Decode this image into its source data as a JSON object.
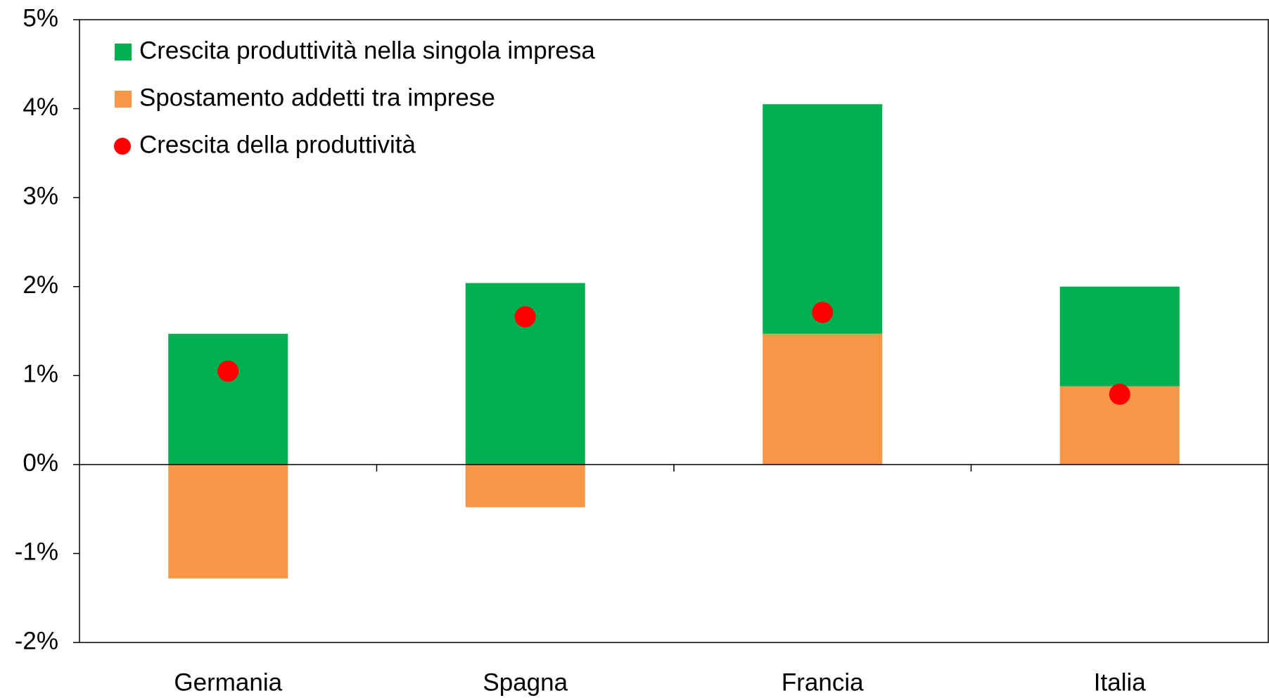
{
  "chart_data": {
    "type": "bar",
    "categories": [
      "Germania",
      "Spagna",
      "Francia",
      "Italia"
    ],
    "series": [
      {
        "name": "Crescita produttività nella singola impresa",
        "color": "#00b050",
        "values": [
          1.47,
          2.04,
          2.58,
          1.12
        ]
      },
      {
        "name": "Spostamento addetti tra imprese",
        "color": "#f79646",
        "values": [
          -1.28,
          -0.48,
          1.47,
          0.88
        ]
      },
      {
        "name": "Crescita della produttività",
        "color": "#ff0000",
        "type": "scatter",
        "values": [
          1.05,
          1.66,
          1.71,
          0.79
        ]
      }
    ],
    "ylim": [
      -2,
      5
    ],
    "yticks": [
      {
        "value": -2,
        "label": "-2%"
      },
      {
        "value": -1,
        "label": "-1%"
      },
      {
        "value": 0,
        "label": "0%"
      },
      {
        "value": 1,
        "label": "1%"
      },
      {
        "value": 2,
        "label": "2%"
      },
      {
        "value": 3,
        "label": "3%"
      },
      {
        "value": 4,
        "label": "4%"
      },
      {
        "value": 5,
        "label": "5%"
      }
    ],
    "legend": "upper left",
    "grid": false
  }
}
